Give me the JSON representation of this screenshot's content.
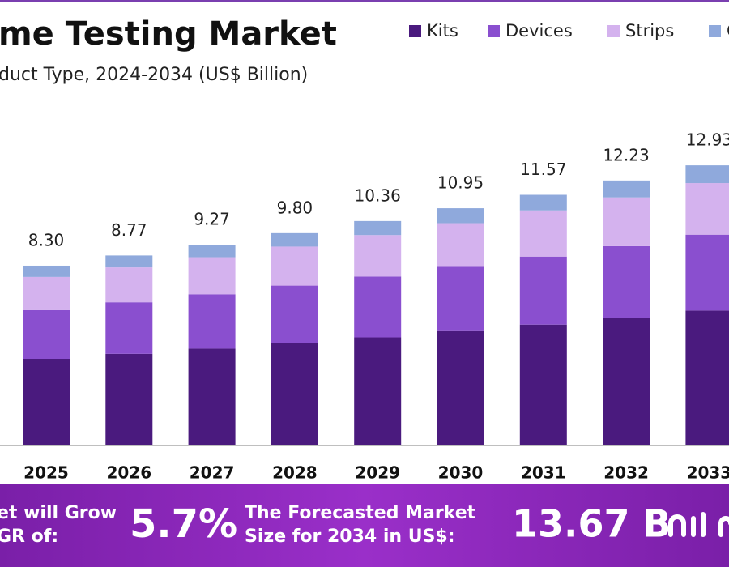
{
  "chart_data": {
    "type": "stacked_bar",
    "title": "me Testing Market",
    "subtitle": "duct Type, 2024-2034 (US$ Billion)",
    "categories": [
      "2025",
      "2026",
      "2027",
      "2028",
      "2029",
      "2030",
      "2031",
      "2032",
      "2033"
    ],
    "series": [
      {
        "name": "Kits",
        "color": "#4a1a7e",
        "values": [
          4.0,
          4.23,
          4.47,
          4.72,
          4.99,
          5.28,
          5.58,
          5.89,
          6.23
        ]
      },
      {
        "name": "Devices",
        "color": "#8a4fcf",
        "values": [
          2.25,
          2.38,
          2.51,
          2.66,
          2.81,
          2.97,
          3.14,
          3.31,
          3.5
        ]
      },
      {
        "name": "Strips",
        "color": "#d4b2ee",
        "values": [
          1.53,
          1.61,
          1.71,
          1.8,
          1.91,
          2.01,
          2.13,
          2.25,
          2.38
        ]
      },
      {
        "name": "C",
        "color": "#8fa9dc",
        "values": [
          0.52,
          0.55,
          0.58,
          0.62,
          0.65,
          0.69,
          0.72,
          0.78,
          0.82
        ]
      }
    ],
    "totals": [
      8.3,
      8.77,
      9.27,
      9.8,
      10.36,
      10.95,
      11.57,
      12.23,
      12.93
    ],
    "total_labels": [
      "8.30",
      "8.77",
      "9.27",
      "9.80",
      "10.36",
      "10.95",
      "11.57",
      "12.23",
      "12.93"
    ]
  },
  "banner": {
    "grow_line1": "et will Grow",
    "grow_line2": "GR of:",
    "cagr": "5.7%",
    "forecast_line1": "The Forecasted Market",
    "forecast_line2": "Size for 2034 in US$:",
    "forecast_value": "13.67 B"
  }
}
